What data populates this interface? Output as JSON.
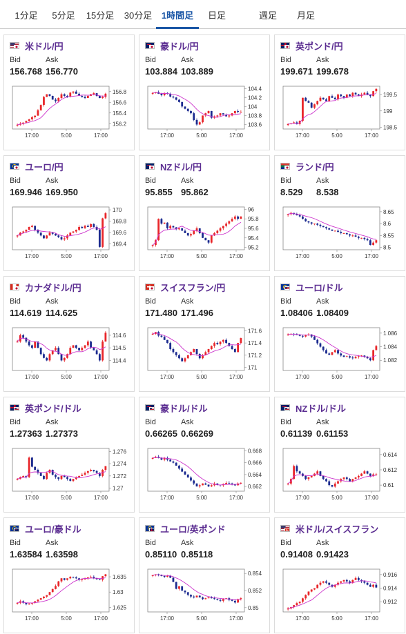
{
  "tabs": [
    {
      "label": "1分足",
      "active": false
    },
    {
      "label": "5分足",
      "active": false
    },
    {
      "label": "15分足",
      "active": false
    },
    {
      "label": "30分足",
      "active": false
    },
    {
      "label": "1時間足",
      "active": true
    },
    {
      "label": "日足",
      "active": false
    },
    {
      "label": "週足",
      "active": false
    },
    {
      "label": "月足",
      "active": false
    }
  ],
  "labels": {
    "bid": "Bid",
    "ask": "Ask"
  },
  "colors": {
    "up": "#e8262a",
    "down": "#1b2a8f",
    "ma": "#cc33cc",
    "pair_name": "#5b2d91"
  },
  "pairs": [
    {
      "name": "米ドル/円",
      "flag": [
        "us-flag",
        "jp-flag"
      ],
      "bid": "156.768",
      "ask": "156.770",
      "chart_data": {
        "type": "candlestick",
        "x_ticks": [
          "17:00",
          "5:00",
          "17:00"
        ],
        "y_ticks": [
          "156.8",
          "156.6",
          "156.4",
          "156.2"
        ],
        "ylim": [
          156.1,
          156.9
        ],
        "trend": [
          156.18,
          156.2,
          156.22,
          156.25,
          156.28,
          156.32,
          156.35,
          156.45,
          156.55,
          156.7,
          156.75,
          156.72,
          156.65,
          156.62,
          156.68,
          156.75,
          156.72,
          156.7,
          156.78,
          156.8,
          156.76,
          156.72,
          156.7,
          156.68,
          156.72,
          156.75,
          156.77,
          156.72,
          156.68,
          156.7,
          156.76
        ]
      }
    },
    {
      "name": "豪ドル/円",
      "flag": [
        "au-flag",
        "jp-flag"
      ],
      "bid": "103.884",
      "ask": "103.889",
      "chart_data": {
        "type": "candlestick",
        "x_ticks": [
          "17:00",
          "5:00",
          "17:00"
        ],
        "y_ticks": [
          "104.4",
          "104.2",
          "104",
          "103.8",
          "103.6"
        ],
        "ylim": [
          103.5,
          104.45
        ],
        "trend": [
          104.3,
          104.32,
          104.28,
          104.25,
          104.3,
          104.28,
          104.22,
          104.2,
          104.15,
          104.1,
          104.0,
          103.95,
          103.9,
          103.85,
          103.7,
          103.6,
          103.65,
          103.8,
          103.85,
          103.9,
          103.75,
          103.78,
          103.8,
          103.85,
          103.82,
          103.78,
          103.8,
          103.85,
          103.9,
          103.88,
          103.88
        ]
      }
    },
    {
      "name": "英ポンド/円",
      "flag": [
        "gb-flag",
        "jp-flag"
      ],
      "bid": "199.671",
      "ask": "199.678",
      "chart_data": {
        "type": "candlestick",
        "x_ticks": [
          "17:00",
          "5:00",
          "17:00"
        ],
        "y_ticks": [
          "199.5",
          "199",
          "198.5"
        ],
        "ylim": [
          198.45,
          199.75
        ],
        "trend": [
          198.6,
          198.62,
          198.65,
          198.6,
          198.7,
          199.4,
          199.3,
          199.25,
          199.1,
          199.2,
          199.3,
          199.4,
          199.35,
          199.3,
          199.45,
          199.4,
          199.35,
          199.5,
          199.45,
          199.4,
          199.5,
          199.45,
          199.55,
          199.5,
          199.45,
          199.5,
          199.55,
          199.5,
          199.45,
          199.6,
          199.67
        ]
      }
    },
    {
      "name": "ユーロ/円",
      "flag": [
        "eu-flag",
        "jp-flag"
      ],
      "bid": "169.946",
      "ask": "169.950",
      "chart_data": {
        "type": "candlestick",
        "x_ticks": [
          "17:00",
          "5:00",
          "17:00"
        ],
        "y_ticks": [
          "170",
          "169.8",
          "169.6",
          "169.4"
        ],
        "ylim": [
          169.3,
          170.05
        ],
        "trend": [
          169.55,
          169.6,
          169.62,
          169.65,
          169.7,
          169.72,
          169.65,
          169.6,
          169.55,
          169.5,
          169.55,
          169.6,
          169.58,
          169.55,
          169.52,
          169.48,
          169.5,
          169.55,
          169.6,
          169.62,
          169.65,
          169.7,
          169.68,
          169.72,
          169.7,
          169.75,
          169.7,
          169.65,
          169.35,
          169.85,
          169.94
        ]
      }
    },
    {
      "name": "NZドル/円",
      "flag": [
        "nz-flag",
        "jp-flag"
      ],
      "bid": "95.855",
      "ask": "95.862",
      "chart_data": {
        "type": "candlestick",
        "x_ticks": [
          "17:00",
          "5:00",
          "17:00"
        ],
        "y_ticks": [
          "96",
          "95.8",
          "95.6",
          "95.4",
          "95.2"
        ],
        "ylim": [
          95.15,
          96.05
        ],
        "trend": [
          95.25,
          95.35,
          95.8,
          95.7,
          95.72,
          95.6,
          95.65,
          95.62,
          95.58,
          95.6,
          95.55,
          95.5,
          95.45,
          95.48,
          95.55,
          95.6,
          95.5,
          95.4,
          95.35,
          95.3,
          95.45,
          95.5,
          95.55,
          95.6,
          95.65,
          95.7,
          95.75,
          95.8,
          95.85,
          95.8,
          95.85
        ]
      }
    },
    {
      "name": "ランド/円",
      "flag": [
        "za-flag",
        "jp-flag"
      ],
      "bid": "8.529",
      "ask": "8.538",
      "chart_data": {
        "type": "candlestick",
        "x_ticks": [
          "17:00",
          "5:00",
          "17:00"
        ],
        "y_ticks": [
          "8.65",
          "8.6",
          "8.55",
          "8.5"
        ],
        "ylim": [
          8.49,
          8.67
        ],
        "trend": [
          8.64,
          8.645,
          8.64,
          8.635,
          8.63,
          8.62,
          8.61,
          8.605,
          8.6,
          8.6,
          8.595,
          8.59,
          8.585,
          8.58,
          8.575,
          8.57,
          8.57,
          8.565,
          8.56,
          8.56,
          8.555,
          8.55,
          8.55,
          8.545,
          8.54,
          8.54,
          8.535,
          8.53,
          8.51,
          8.52,
          8.53
        ]
      }
    },
    {
      "name": "カナダドル/円",
      "flag": [
        "ca-flag",
        "jp-flag"
      ],
      "bid": "114.619",
      "ask": "114.625",
      "chart_data": {
        "type": "candlestick",
        "x_ticks": [
          "17:00",
          "5:00",
          "17:00"
        ],
        "y_ticks": [
          "114.6",
          "114.5",
          "114.4"
        ],
        "ylim": [
          114.32,
          114.66
        ],
        "trend": [
          114.55,
          114.6,
          114.58,
          114.55,
          114.52,
          114.5,
          114.55,
          114.5,
          114.45,
          114.42,
          114.4,
          114.45,
          114.48,
          114.5,
          114.45,
          114.4,
          114.42,
          114.45,
          114.5,
          114.52,
          114.5,
          114.48,
          114.5,
          114.52,
          114.55,
          114.5,
          114.48,
          114.45,
          114.4,
          114.55,
          114.62
        ]
      }
    },
    {
      "name": "スイスフラン/円",
      "flag": [
        "ch-flag",
        "jp-flag"
      ],
      "bid": "171.480",
      "ask": "171.496",
      "chart_data": {
        "type": "candlestick",
        "x_ticks": [
          "17:00",
          "5:00",
          "17:00"
        ],
        "y_ticks": [
          "171.6",
          "171.4",
          "171.2",
          "171"
        ],
        "ylim": [
          170.95,
          171.65
        ],
        "trend": [
          171.55,
          171.58,
          171.52,
          171.5,
          171.45,
          171.4,
          171.3,
          171.25,
          171.2,
          171.15,
          171.1,
          171.15,
          171.2,
          171.25,
          171.3,
          171.22,
          171.15,
          171.2,
          171.25,
          171.3,
          171.35,
          171.4,
          171.38,
          171.42,
          171.45,
          171.4,
          171.35,
          171.3,
          171.25,
          171.4,
          171.48
        ]
      }
    },
    {
      "name": "ユーロ/ドル",
      "flag": [
        "eu-flag",
        "us-flag"
      ],
      "bid": "1.08406",
      "ask": "1.08409",
      "chart_data": {
        "type": "candlestick",
        "x_ticks": [
          "17:00",
          "5:00",
          "17:00"
        ],
        "y_ticks": [
          "1.086",
          "1.084",
          "1.082"
        ],
        "ylim": [
          1.0805,
          1.0868
        ],
        "trend": [
          1.0858,
          1.0859,
          1.0858,
          1.0857,
          1.0856,
          1.0855,
          1.0857,
          1.0858,
          1.0855,
          1.085,
          1.0845,
          1.084,
          1.0835,
          1.083,
          1.0828,
          1.0832,
          1.0835,
          1.083,
          1.0827,
          1.0825,
          1.0826,
          1.0824,
          1.0823,
          1.0825,
          1.0826,
          1.0827,
          1.0825,
          1.0823,
          1.082,
          1.0835,
          1.0841
        ]
      }
    },
    {
      "name": "英ポンド/ドル",
      "flag": [
        "gb-flag",
        "us-flag"
      ],
      "bid": "1.27363",
      "ask": "1.27373",
      "chart_data": {
        "type": "candlestick",
        "x_ticks": [
          "17:00",
          "5:00",
          "17:00"
        ],
        "y_ticks": [
          "1.276",
          "1.274",
          "1.272",
          "1.27"
        ],
        "ylim": [
          1.2695,
          1.2765
        ],
        "trend": [
          1.2715,
          1.2718,
          1.272,
          1.2718,
          1.275,
          1.2735,
          1.273,
          1.2725,
          1.272,
          1.2715,
          1.2725,
          1.273,
          1.2722,
          1.2718,
          1.2715,
          1.272,
          1.2718,
          1.2715,
          1.2712,
          1.2715,
          1.2718,
          1.272,
          1.2722,
          1.2725,
          1.2728,
          1.273,
          1.2728,
          1.2725,
          1.272,
          1.273,
          1.2736
        ]
      }
    },
    {
      "name": "豪ドル/ドル",
      "flag": [
        "au-flag",
        "us-flag"
      ],
      "bid": "0.66265",
      "ask": "0.66269",
      "chart_data": {
        "type": "candlestick",
        "x_ticks": [
          "17:00",
          "5:00",
          "17:00"
        ],
        "y_ticks": [
          "0.668",
          "0.666",
          "0.664",
          "0.662"
        ],
        "ylim": [
          0.6612,
          0.6684
        ],
        "trend": [
          0.6668,
          0.667,
          0.6668,
          0.6665,
          0.6668,
          0.6665,
          0.6662,
          0.666,
          0.6655,
          0.665,
          0.6645,
          0.664,
          0.6635,
          0.663,
          0.6625,
          0.662,
          0.6622,
          0.6625,
          0.6623,
          0.662,
          0.6622,
          0.6625,
          0.6623,
          0.6622,
          0.6624,
          0.6626,
          0.6625,
          0.6623,
          0.6622,
          0.6625,
          0.6626
        ]
      }
    },
    {
      "name": "NZドル/ドル",
      "flag": [
        "nz-flag",
        "us-flag"
      ],
      "bid": "0.61139",
      "ask": "0.61153",
      "chart_data": {
        "type": "candlestick",
        "x_ticks": [
          "17:00",
          "5:00",
          "17:00"
        ],
        "y_ticks": [
          "0.614",
          "0.612",
          "0.61"
        ],
        "ylim": [
          0.6092,
          0.6148
        ],
        "trend": [
          0.6102,
          0.6108,
          0.6125,
          0.6118,
          0.6115,
          0.6112,
          0.6108,
          0.611,
          0.6112,
          0.6115,
          0.6118,
          0.6112,
          0.6108,
          0.6105,
          0.61,
          0.6098,
          0.6102,
          0.6105,
          0.6108,
          0.611,
          0.6108,
          0.6105,
          0.6108,
          0.611,
          0.6112,
          0.6115,
          0.6118,
          0.6115,
          0.6112,
          0.6114,
          0.6114
        ]
      }
    },
    {
      "name": "ユーロ/豪ドル",
      "flag": [
        "eu-flag",
        "au-flag"
      ],
      "bid": "1.63584",
      "ask": "1.63598",
      "chart_data": {
        "type": "candlestick",
        "x_ticks": [
          "17:00",
          "5:00",
          "17:00"
        ],
        "y_ticks": [
          "1.635",
          "1.63",
          "1.625"
        ],
        "ylim": [
          1.6235,
          1.6375
        ],
        "trend": [
          1.6265,
          1.627,
          1.6265,
          1.626,
          1.6262,
          1.6265,
          1.627,
          1.6275,
          1.628,
          1.6285,
          1.629,
          1.63,
          1.631,
          1.632,
          1.6335,
          1.6345,
          1.634,
          1.6345,
          1.635,
          1.6348,
          1.6345,
          1.634,
          1.6342,
          1.6345,
          1.6348,
          1.635,
          1.6345,
          1.6342,
          1.634,
          1.6352,
          1.6358
        ]
      }
    },
    {
      "name": "ユーロ/英ポンド",
      "flag": [
        "eu-flag",
        "gb-flag"
      ],
      "bid": "0.85110",
      "ask": "0.85118",
      "chart_data": {
        "type": "candlestick",
        "x_ticks": [
          "17:00",
          "5:00",
          "17:00"
        ],
        "y_ticks": [
          "0.854",
          "0.852",
          "0.85"
        ],
        "ylim": [
          0.8495,
          0.8545
        ],
        "trend": [
          0.8538,
          0.8539,
          0.8538,
          0.8537,
          0.8536,
          0.8537,
          0.8535,
          0.853,
          0.8522,
          0.8525,
          0.852,
          0.8518,
          0.8515,
          0.8513,
          0.8512,
          0.8514,
          0.8512,
          0.851,
          0.8511,
          0.8512,
          0.8511,
          0.851,
          0.8509,
          0.8508,
          0.851,
          0.8511,
          0.8509,
          0.8508,
          0.8506,
          0.851,
          0.8511
        ]
      }
    },
    {
      "name": "米ドル/スイスフラン",
      "flag": [
        "us-flag",
        "ch-flag"
      ],
      "bid": "0.91408",
      "ask": "0.91423",
      "chart_data": {
        "type": "candlestick",
        "x_ticks": [
          "17:00",
          "5:00",
          "17:00"
        ],
        "y_ticks": [
          "0.916",
          "0.914",
          "0.912"
        ],
        "ylim": [
          0.9105,
          0.9168
        ],
        "trend": [
          0.911,
          0.9112,
          0.9115,
          0.9118,
          0.912,
          0.9125,
          0.913,
          0.9135,
          0.9138,
          0.914,
          0.9145,
          0.9148,
          0.915,
          0.9148,
          0.9145,
          0.9142,
          0.9145,
          0.9148,
          0.915,
          0.9152,
          0.915,
          0.9148,
          0.9152,
          0.9155,
          0.9152,
          0.915,
          0.9148,
          0.9145,
          0.9142,
          0.9145,
          0.9141
        ]
      }
    }
  ]
}
